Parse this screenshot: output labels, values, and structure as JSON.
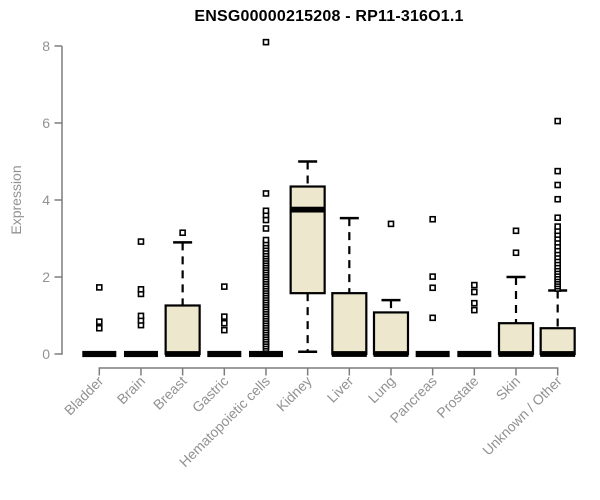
{
  "chart_data": {
    "type": "boxplot",
    "title": "ENSG00000215208 - RP11-316O1.1",
    "ylabel": "Expression",
    "xlabel": "",
    "ylim": [
      0,
      8.4
    ],
    "yticks": [
      0,
      2,
      4,
      6,
      8
    ],
    "grid": false,
    "legend": "none",
    "categories": [
      "Bladder",
      "Brain",
      "Breast",
      "Gastric",
      "Hematopoietic cells",
      "Kidney",
      "Liver",
      "Lung",
      "Pancreas",
      "Prostate",
      "Skin",
      "Unknown / Other"
    ],
    "boxes": [
      {
        "category": "Bladder",
        "low": 0,
        "q1": 0,
        "median": 0,
        "q3": 0,
        "high": 0,
        "outliers": [
          0.67,
          0.84,
          1.73
        ]
      },
      {
        "category": "Brain",
        "low": 0,
        "q1": 0,
        "median": 0,
        "q3": 0,
        "high": 0,
        "outliers": [
          0.75,
          0.87,
          0.99,
          1.56,
          1.68,
          2.92
        ]
      },
      {
        "category": "Breast",
        "low": 0,
        "q1": 0,
        "median": 0,
        "q3": 1.26,
        "high": 2.9,
        "outliers": [
          3.15
        ]
      },
      {
        "category": "Gastric",
        "low": 0,
        "q1": 0,
        "median": 0,
        "q3": 0,
        "high": 0,
        "outliers": [
          0.62,
          0.8,
          0.97,
          1.75
        ]
      },
      {
        "category": "Hematopoietic cells",
        "low": 0,
        "q1": 0,
        "median": 0,
        "q3": 0,
        "high": 0,
        "outliers": [
          0.14,
          0.2,
          0.26,
          0.32,
          0.38,
          0.44,
          0.5,
          0.56,
          0.62,
          0.68,
          0.74,
          0.8,
          0.86,
          0.92,
          0.98,
          1.04,
          1.1,
          1.16,
          1.22,
          1.28,
          1.34,
          1.4,
          1.46,
          1.52,
          1.58,
          1.64,
          1.7,
          1.76,
          1.82,
          1.88,
          1.94,
          2.0,
          2.06,
          2.12,
          2.18,
          2.24,
          2.3,
          2.36,
          2.42,
          2.48,
          2.54,
          2.6,
          2.67,
          2.74,
          2.81,
          2.88,
          2.96,
          3.26,
          3.48,
          3.61,
          3.72,
          4.17,
          8.1
        ]
      },
      {
        "category": "Kidney",
        "low": 0.06,
        "q1": 1.58,
        "median": 3.75,
        "q3": 4.35,
        "high": 5.0,
        "outliers": []
      },
      {
        "category": "Liver",
        "low": 0,
        "q1": 0,
        "median": 0,
        "q3": 1.58,
        "high": 3.53,
        "outliers": []
      },
      {
        "category": "Lung",
        "low": 0,
        "q1": 0,
        "median": 0,
        "q3": 1.08,
        "high": 1.4,
        "outliers": [
          3.38
        ]
      },
      {
        "category": "Pancreas",
        "low": 0,
        "q1": 0,
        "median": 0,
        "q3": 0,
        "high": 0,
        "outliers": [
          0.94,
          1.72,
          2.01,
          3.5
        ]
      },
      {
        "category": "Prostate",
        "low": 0,
        "q1": 0,
        "median": 0,
        "q3": 0,
        "high": 0,
        "outliers": [
          1.14,
          1.32,
          1.61,
          1.79
        ]
      },
      {
        "category": "Skin",
        "low": 0,
        "q1": 0,
        "median": 0,
        "q3": 0.8,
        "high": 2.0,
        "outliers": [
          2.63,
          3.2
        ]
      },
      {
        "category": "Unknown / Other",
        "low": 0,
        "q1": 0,
        "median": 0,
        "q3": 0.67,
        "high": 1.65,
        "outliers": [
          1.7,
          1.76,
          1.82,
          1.88,
          1.94,
          2.0,
          2.07,
          2.14,
          2.21,
          2.28,
          2.36,
          2.44,
          2.52,
          2.61,
          2.7,
          2.8,
          2.9,
          3.0,
          3.1,
          3.2,
          3.31,
          3.54,
          4.02,
          4.39,
          4.75,
          6.05
        ]
      }
    ]
  },
  "colors": {
    "box_fill": "#ECE7CD",
    "box_stroke": "#000000",
    "median": "#000000",
    "whisker": "#000000",
    "outlier_stroke": "#000000",
    "outlier_fill": "#ffffff",
    "axis_line": "#7d7d7d",
    "axis_text": "#929292",
    "title_text": "#000000",
    "background": "#ffffff"
  }
}
